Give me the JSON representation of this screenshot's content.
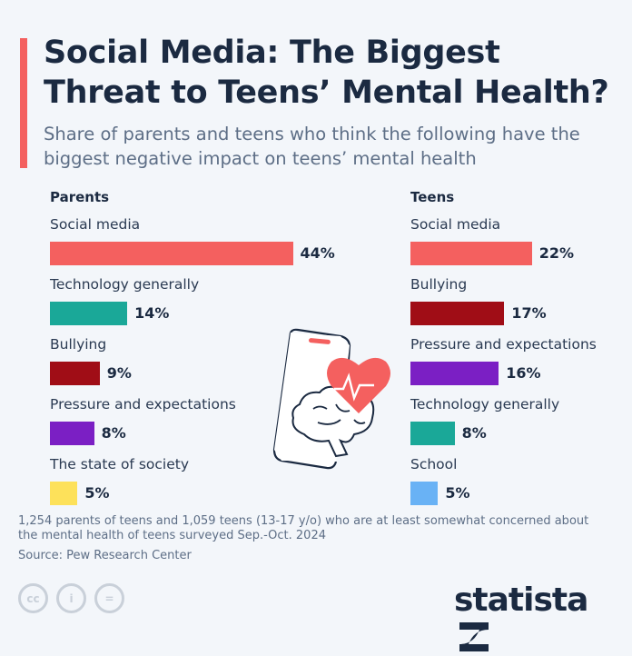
{
  "header": {
    "title": "Social Media: The Biggest Threat to Teens’ Mental Health?",
    "subtitle": "Share of parents and teens who think the following have the biggest negative impact on teens’ mental health"
  },
  "chart_data": [
    {
      "type": "bar",
      "orientation": "horizontal",
      "title": "Parents",
      "categories": [
        "Social media",
        "Technology generally",
        "Bullying",
        "Pressure and expectations",
        "The state of society"
      ],
      "values": [
        44,
        14,
        9,
        8,
        5
      ],
      "value_labels": [
        "44%",
        "14%",
        "9%",
        "8%",
        "5%"
      ],
      "colors": [
        "#f4605f",
        "#1aa898",
        "#a00d16",
        "#7b1fc4",
        "#fde15a"
      ],
      "unit": "%"
    },
    {
      "type": "bar",
      "orientation": "horizontal",
      "title": "Teens",
      "categories": [
        "Social media",
        "Bullying",
        "Pressure and expectations",
        "Technology generally",
        "School"
      ],
      "values": [
        22,
        17,
        16,
        8,
        5
      ],
      "value_labels": [
        "22%",
        "17%",
        "16%",
        "8%",
        "5%"
      ],
      "colors": [
        "#f4605f",
        "#a00d16",
        "#7b1fc4",
        "#1aa898",
        "#69b2f5"
      ],
      "unit": "%"
    }
  ],
  "footer": {
    "note": "1,254 parents of teens and 1,059 teens (13-17 y/o) who are at least somewhat concerned about the mental health of teens surveyed Sep.-Oct. 2024",
    "source": "Source: Pew Research Center",
    "logo": "statista",
    "license_icons": [
      "cc-icon",
      "by-icon",
      "nd-icon"
    ]
  }
}
